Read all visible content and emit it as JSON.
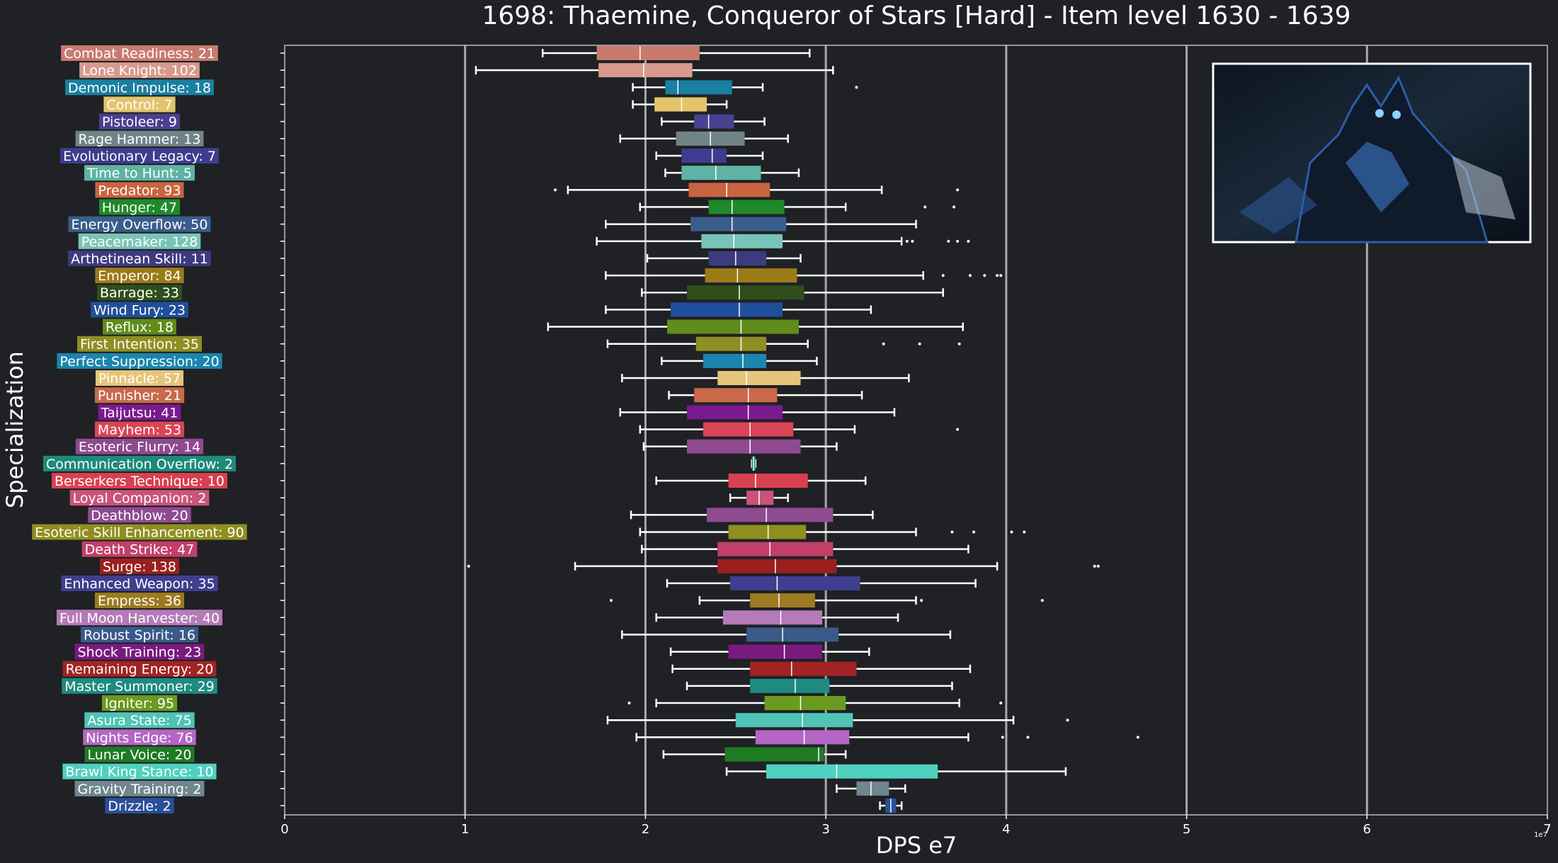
{
  "chart_data": {
    "type": "box",
    "title": "1698: Thaemine, Conqueror of Stars [Hard] - Item level 1630 - 1639",
    "xlabel": "DPS e7",
    "ylabel": "Specialization",
    "x_exponent_label": "1e7",
    "xlim": [
      0,
      7
    ],
    "xticks": [
      "0",
      "1",
      "2",
      "3",
      "4",
      "5",
      "6",
      "7"
    ],
    "grid": "vertical major lines at 1-6",
    "categories": [
      {
        "label": "Combat Readiness: 21",
        "color": "#c97a6f",
        "whislo": 1.43,
        "q1": 1.73,
        "med": 1.97,
        "q3": 2.3,
        "whishi": 2.91,
        "fliers": []
      },
      {
        "label": "Lone Knight: 102",
        "color": "#d79a8c",
        "whislo": 1.06,
        "q1": 1.74,
        "med": 1.99,
        "q3": 2.26,
        "whishi": 3.04,
        "fliers": []
      },
      {
        "label": "Demonic Impulse: 18",
        "color": "#1a7fa0",
        "whislo": 1.93,
        "q1": 2.11,
        "med": 2.18,
        "q3": 2.48,
        "whishi": 2.65,
        "fliers": [
          3.17
        ]
      },
      {
        "label": "Control: 7",
        "color": "#e3c46a",
        "whislo": 1.93,
        "q1": 2.05,
        "med": 2.2,
        "q3": 2.34,
        "whishi": 2.45,
        "fliers": []
      },
      {
        "label": "Pistoleer: 9",
        "color": "#4a4090",
        "whislo": 2.09,
        "q1": 2.27,
        "med": 2.35,
        "q3": 2.49,
        "whishi": 2.66,
        "fliers": []
      },
      {
        "label": "Rage Hammer: 13",
        "color": "#708488",
        "whislo": 1.86,
        "q1": 2.17,
        "med": 2.36,
        "q3": 2.55,
        "whishi": 2.79,
        "fliers": []
      },
      {
        "label": "Evolutionary Legacy: 7",
        "color": "#3d3d8f",
        "whislo": 2.06,
        "q1": 2.2,
        "med": 2.37,
        "q3": 2.45,
        "whishi": 2.65,
        "fliers": []
      },
      {
        "label": "Time to Hunt: 5",
        "color": "#5fb3a4",
        "whislo": 2.11,
        "q1": 2.2,
        "med": 2.39,
        "q3": 2.64,
        "whishi": 2.85,
        "fliers": []
      },
      {
        "label": "Predator: 93",
        "color": "#c8643f",
        "whislo": 1.57,
        "q1": 2.24,
        "med": 2.45,
        "q3": 2.69,
        "whishi": 3.31,
        "fliers": [
          1.5,
          3.73
        ]
      },
      {
        "label": "Hunger: 47",
        "color": "#1f8a2a",
        "whislo": 1.97,
        "q1": 2.35,
        "med": 2.48,
        "q3": 2.77,
        "whishi": 3.11,
        "fliers": [
          3.55,
          3.71
        ]
      },
      {
        "label": "Energy Overflow: 50",
        "color": "#3a5e8c",
        "whislo": 1.78,
        "q1": 2.25,
        "med": 2.48,
        "q3": 2.78,
        "whishi": 3.5,
        "fliers": []
      },
      {
        "label": "Peacemaker: 128",
        "color": "#79c4b8",
        "whislo": 1.73,
        "q1": 2.31,
        "med": 2.49,
        "q3": 2.76,
        "whishi": 3.42,
        "fliers": [
          3.45,
          3.48,
          3.68,
          3.73,
          3.79
        ]
      },
      {
        "label": "Arthetinean Skill: 11",
        "color": "#3f3a80",
        "whislo": 2.01,
        "q1": 2.35,
        "med": 2.5,
        "q3": 2.67,
        "whishi": 2.86,
        "fliers": []
      },
      {
        "label": "Emperor: 84",
        "color": "#9c7a1a",
        "whislo": 1.78,
        "q1": 2.33,
        "med": 2.51,
        "q3": 2.84,
        "whishi": 3.54,
        "fliers": [
          3.65,
          3.8,
          3.88,
          3.95,
          3.97
        ]
      },
      {
        "label": "Barrage: 33",
        "color": "#2e4f1c",
        "whislo": 1.98,
        "q1": 2.23,
        "med": 2.52,
        "q3": 2.88,
        "whishi": 3.65,
        "fliers": []
      },
      {
        "label": "Wind Fury: 23",
        "color": "#1f4f9a",
        "whislo": 1.78,
        "q1": 2.14,
        "med": 2.52,
        "q3": 2.76,
        "whishi": 3.25,
        "fliers": []
      },
      {
        "label": "Reflux: 18",
        "color": "#5f8c1a",
        "whislo": 1.46,
        "q1": 2.12,
        "med": 2.53,
        "q3": 2.85,
        "whishi": 3.76,
        "fliers": []
      },
      {
        "label": "First Intention: 35",
        "color": "#8f8f23",
        "whislo": 1.79,
        "q1": 2.28,
        "med": 2.53,
        "q3": 2.67,
        "whishi": 2.9,
        "fliers": [
          3.32,
          3.52,
          3.74
        ]
      },
      {
        "label": "Perfect Suppression: 20",
        "color": "#1a86ad",
        "whislo": 2.09,
        "q1": 2.32,
        "med": 2.54,
        "q3": 2.67,
        "whishi": 2.95,
        "fliers": []
      },
      {
        "label": "Pinnacle: 57",
        "color": "#e6c57a",
        "whislo": 1.87,
        "q1": 2.4,
        "med": 2.56,
        "q3": 2.86,
        "whishi": 3.46,
        "fliers": []
      },
      {
        "label": "Punisher: 21",
        "color": "#c9694a",
        "whislo": 2.13,
        "q1": 2.27,
        "med": 2.57,
        "q3": 2.73,
        "whishi": 3.2,
        "fliers": []
      },
      {
        "label": "Taijutsu: 41",
        "color": "#7a1a8f",
        "whislo": 1.86,
        "q1": 2.23,
        "med": 2.57,
        "q3": 2.76,
        "whishi": 3.38,
        "fliers": []
      },
      {
        "label": "Mayhem: 53",
        "color": "#d94456",
        "whislo": 1.97,
        "q1": 2.32,
        "med": 2.58,
        "q3": 2.82,
        "whishi": 3.16,
        "fliers": [
          3.73
        ]
      },
      {
        "label": "Esoteric Flurry: 14",
        "color": "#8f4a8f",
        "whislo": 1.99,
        "q1": 2.23,
        "med": 2.58,
        "q3": 2.86,
        "whishi": 3.06,
        "fliers": []
      },
      {
        "label": "Communication Overflow: 2",
        "color": "#1f8a7a",
        "whislo": 2.59,
        "q1": 2.59,
        "med": 2.6,
        "q3": 2.61,
        "whishi": 2.61,
        "fliers": []
      },
      {
        "label": "Berserkers Technique: 10",
        "color": "#d9404f",
        "whislo": 2.06,
        "q1": 2.46,
        "med": 2.61,
        "q3": 2.9,
        "whishi": 3.22,
        "fliers": []
      },
      {
        "label": "Loyal Companion: 2",
        "color": "#c9537a",
        "whislo": 2.47,
        "q1": 2.56,
        "med": 2.63,
        "q3": 2.71,
        "whishi": 2.79,
        "fliers": []
      },
      {
        "label": "Deathblow: 20",
        "color": "#8f4a90",
        "whislo": 1.92,
        "q1": 2.34,
        "med": 2.67,
        "q3": 3.04,
        "whishi": 3.26,
        "fliers": []
      },
      {
        "label": "Esoteric Skill Enhancement: 90",
        "color": "#8f8f1f",
        "whislo": 1.97,
        "q1": 2.46,
        "med": 2.68,
        "q3": 2.89,
        "whishi": 3.5,
        "fliers": [
          3.7,
          3.82,
          4.03,
          4.1
        ]
      },
      {
        "label": "Death Strike: 47",
        "color": "#c23f6a",
        "whislo": 1.98,
        "q1": 2.4,
        "med": 2.69,
        "q3": 3.04,
        "whishi": 3.79,
        "fliers": []
      },
      {
        "label": "Surge: 138",
        "color": "#9c1f1f",
        "whislo": 1.61,
        "q1": 2.4,
        "med": 2.72,
        "q3": 3.06,
        "whishi": 3.95,
        "fliers": [
          1.02,
          4.49,
          4.51
        ]
      },
      {
        "label": "Enhanced Weapon: 35",
        "color": "#3f3f8f",
        "whislo": 2.12,
        "q1": 2.47,
        "med": 2.73,
        "q3": 3.19,
        "whishi": 3.83,
        "fliers": []
      },
      {
        "label": "Empress: 36",
        "color": "#9c7a1f",
        "whislo": 2.3,
        "q1": 2.58,
        "med": 2.74,
        "q3": 2.94,
        "whishi": 3.5,
        "fliers": [
          1.81,
          3.53,
          4.2
        ]
      },
      {
        "label": "Full Moon Harvester: 40",
        "color": "#b57ab8",
        "whislo": 2.06,
        "q1": 2.43,
        "med": 2.75,
        "q3": 2.98,
        "whishi": 3.4,
        "fliers": []
      },
      {
        "label": "Robust Spirit: 16",
        "color": "#3a5a8a",
        "whislo": 1.87,
        "q1": 2.56,
        "med": 2.76,
        "q3": 3.07,
        "whishi": 3.69,
        "fliers": []
      },
      {
        "label": "Shock Training: 23",
        "color": "#7a1a7f",
        "whislo": 2.14,
        "q1": 2.46,
        "med": 2.77,
        "q3": 2.98,
        "whishi": 3.24,
        "fliers": []
      },
      {
        "label": "Remaining Energy: 20",
        "color": "#a12424",
        "whislo": 2.15,
        "q1": 2.58,
        "med": 2.81,
        "q3": 3.17,
        "whishi": 3.8,
        "fliers": []
      },
      {
        "label": "Master Summoner: 29",
        "color": "#1f8a80",
        "whislo": 2.23,
        "q1": 2.58,
        "med": 2.83,
        "q3": 3.02,
        "whishi": 3.7,
        "fliers": []
      },
      {
        "label": "Igniter: 95",
        "color": "#6a9a1f",
        "whislo": 2.06,
        "q1": 2.66,
        "med": 2.86,
        "q3": 3.11,
        "whishi": 3.74,
        "fliers": [
          1.91,
          3.97
        ]
      },
      {
        "label": "Asura State: 75",
        "color": "#4fc4b5",
        "whislo": 1.79,
        "q1": 2.5,
        "med": 2.87,
        "q3": 3.15,
        "whishi": 4.04,
        "fliers": [
          4.34
        ]
      },
      {
        "label": "Nights Edge: 76",
        "color": "#b566c4",
        "whislo": 1.95,
        "q1": 2.61,
        "med": 2.88,
        "q3": 3.13,
        "whishi": 3.79,
        "fliers": [
          3.98,
          4.12,
          4.73
        ]
      },
      {
        "label": "Lunar Voice: 20",
        "color": "#1f7a24",
        "whislo": 2.1,
        "q1": 2.44,
        "med": 2.96,
        "q3": 2.99,
        "whishi": 3.11,
        "fliers": []
      },
      {
        "label": "Brawl King Stance: 10",
        "color": "#4fd1c0",
        "whislo": 2.45,
        "q1": 2.67,
        "med": 3.06,
        "q3": 3.62,
        "whishi": 4.33,
        "fliers": []
      },
      {
        "label": "Gravity Training: 2",
        "color": "#6f878f",
        "whislo": 3.06,
        "q1": 3.17,
        "med": 3.25,
        "q3": 3.35,
        "whishi": 3.44,
        "fliers": []
      },
      {
        "label": "Drizzle: 2",
        "color": "#2a4f9a",
        "whislo": 3.3,
        "q1": 3.33,
        "med": 3.36,
        "q3": 3.39,
        "whishi": 3.42,
        "fliers": []
      }
    ]
  },
  "inset_image": {
    "icon": "boss-portrait-image",
    "border": "#ffffff"
  }
}
